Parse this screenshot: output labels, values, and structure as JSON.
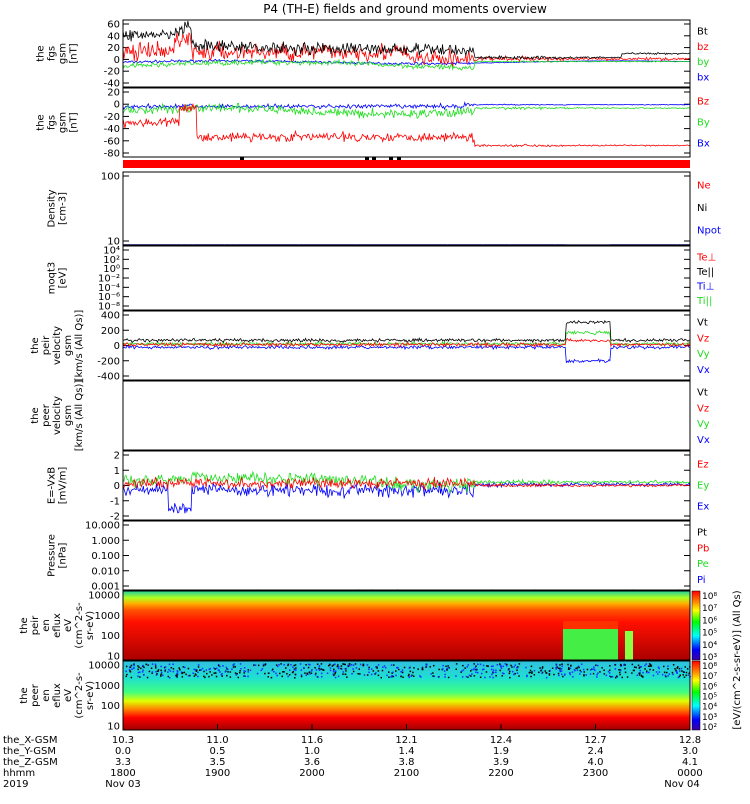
{
  "title": "P4 (TH-E) fields and ground moments overview",
  "colors": {
    "black": "#000000",
    "red": "#ff0000",
    "green": "#22dd22",
    "blue": "#0000ff"
  },
  "chart_data": [
    {
      "id": "fgs",
      "type": "line",
      "ylabel": [
        "the",
        "fgs",
        "gsm",
        "[nT]"
      ],
      "ylim": [
        -40,
        60
      ],
      "ticks": [
        "60",
        "40",
        "20",
        "0",
        "-20",
        "-40"
      ],
      "legend": [
        {
          "text": "Bt",
          "color": "black"
        },
        {
          "text": "bz",
          "color": "red"
        },
        {
          "text": "by",
          "color": "green"
        },
        {
          "text": "bx",
          "color": "blue"
        }
      ]
    },
    {
      "id": "fgs2",
      "type": "line",
      "ylabel": [
        "the",
        "fgs",
        "gsm",
        "[nT]"
      ],
      "ylim": [
        -90,
        30
      ],
      "ticks": [
        "20",
        "0",
        "-20",
        "-40",
        "-60",
        "-80"
      ],
      "legend": [
        {
          "text": "Bz",
          "color": "red"
        },
        {
          "text": "By",
          "color": "green"
        },
        {
          "text": "Bx",
          "color": "blue"
        }
      ]
    },
    {
      "id": "density",
      "type": "line",
      "ylabel": [
        "Density",
        "[cm-3]"
      ],
      "ylim": [
        1,
        300
      ],
      "log": true,
      "ticks": [
        "100",
        "10"
      ],
      "legend": [
        {
          "text": "Ne",
          "color": "red"
        },
        {
          "text": "Ni",
          "color": "black"
        },
        {
          "text": "Npot",
          "color": "blue"
        }
      ]
    },
    {
      "id": "temp",
      "type": "line",
      "ylabel": [
        "moqt3",
        "[eV]"
      ],
      "ylim": [
        1e-10,
        10000.0
      ],
      "log": true,
      "ticks": [
        "10⁴",
        "10²",
        "10⁰",
        "10⁻²",
        "10⁻⁴",
        "10⁻⁶",
        "10⁻⁸"
      ],
      "legend": [
        {
          "text": "Te⊥",
          "color": "red"
        },
        {
          "text": "Te||",
          "color": "black"
        },
        {
          "text": "Ti⊥",
          "color": "blue"
        },
        {
          "text": "Ti||",
          "color": "green"
        }
      ]
    },
    {
      "id": "peir_vel",
      "type": "line",
      "ylabel": [
        "the",
        "peir",
        "velocity",
        "gsm",
        "[km/s (All Qs)]"
      ],
      "ylim": [
        -400,
        400
      ],
      "ticks": [
        "400",
        "200",
        "0",
        "-200",
        "-400"
      ],
      "legend": [
        {
          "text": "Vt",
          "color": "black"
        },
        {
          "text": "Vz",
          "color": "red"
        },
        {
          "text": "Vy",
          "color": "green"
        },
        {
          "text": "Vx",
          "color": "blue"
        }
      ]
    },
    {
      "id": "peer_vel",
      "type": "line",
      "ylabel": [
        "the",
        "peer",
        "velocity",
        "gsm",
        "[km/s (All Qs)]"
      ],
      "ylim": [
        -400,
        400
      ],
      "ticks": [],
      "legend": [
        {
          "text": "Vt",
          "color": "black"
        },
        {
          "text": "Vz",
          "color": "red"
        },
        {
          "text": "Vy",
          "color": "green"
        },
        {
          "text": "Vx",
          "color": "blue"
        }
      ]
    },
    {
      "id": "efield",
      "type": "line",
      "ylabel": [
        "E=-VxB",
        "[mV/m]"
      ],
      "ylim": [
        -3,
        3
      ],
      "ticks": [
        "2",
        "1",
        "0",
        "-1",
        "-2"
      ],
      "legend": [
        {
          "text": "Ez",
          "color": "red"
        },
        {
          "text": "Ey",
          "color": "green"
        },
        {
          "text": "Ex",
          "color": "blue"
        }
      ]
    },
    {
      "id": "pressure",
      "type": "line",
      "ylabel": [
        "Pressure",
        "[nPa]"
      ],
      "ylim": [
        0.0006,
        12
      ],
      "log": true,
      "ticks": [
        "10.000",
        "1.000",
        "0.100",
        "0.010",
        "0.001"
      ],
      "legend": [
        {
          "text": "Pt",
          "color": "black"
        },
        {
          "text": "Pb",
          "color": "red"
        },
        {
          "text": "Pe",
          "color": "green"
        },
        {
          "text": "Pi",
          "color": "blue"
        }
      ]
    },
    {
      "id": "peir_flux",
      "type": "heatmap",
      "ylabel": [
        "the",
        "peir",
        "en",
        "eflux",
        "eV",
        "(cm^2-s-",
        "sr-eV)"
      ],
      "ylim": [
        5,
        25000
      ],
      "log": true,
      "ticks": [
        "10000",
        "1000",
        "100",
        "10"
      ],
      "colorbar_ticks": [
        "10⁸",
        "10⁷",
        "10⁶",
        "10⁵",
        "10⁴",
        "10³"
      ]
    },
    {
      "id": "peer_flux",
      "type": "heatmap",
      "ylabel": [
        "the",
        "peer",
        "en",
        "eflux",
        "eV",
        "(cm^2-s-",
        "sr-eV)"
      ],
      "ylim": [
        5,
        25000
      ],
      "log": true,
      "ticks": [
        "10000",
        "1000",
        "100",
        "10"
      ],
      "colorbar_ticks": [
        "10⁸",
        "10⁷",
        "10⁶",
        "10⁵",
        "10⁴",
        "10³",
        "10²"
      ]
    }
  ],
  "colorbar_label": "[eV/(cm^2-s-sr-eV)] (All Qs)",
  "x_axis": {
    "rows": [
      {
        "label": "the_X-GSM",
        "values": [
          "10.3",
          "11.0",
          "11.6",
          "12.1",
          "12.4",
          "12.7",
          "12.8"
        ]
      },
      {
        "label": "the_Y-GSM",
        "values": [
          "0.0",
          "0.5",
          "1.0",
          "1.4",
          "1.9",
          "2.4",
          "3.0"
        ]
      },
      {
        "label": "the_Z-GSM",
        "values": [
          "3.3",
          "3.5",
          "3.6",
          "3.8",
          "3.9",
          "4.0",
          "4.1"
        ]
      },
      {
        "label": "hhmm",
        "values": [
          "1800",
          "1900",
          "2000",
          "2100",
          "2200",
          "2300",
          "0000"
        ]
      }
    ],
    "year": "2019",
    "date_start": "Nov 03",
    "date_end": "Nov 04"
  }
}
